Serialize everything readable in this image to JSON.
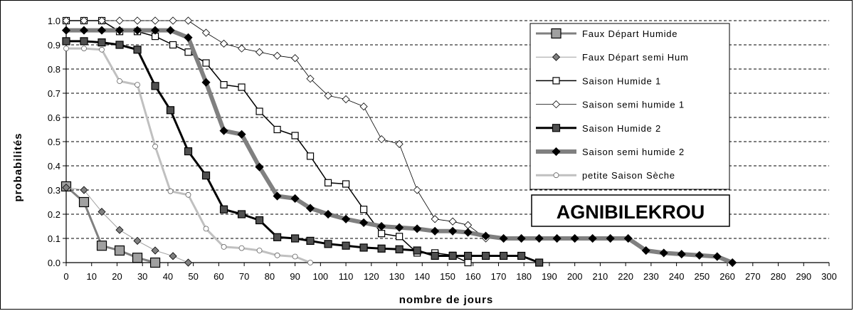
{
  "chart_data": {
    "type": "line",
    "station": "AGNIBILEKROU",
    "xlabel": "nombre de jours",
    "ylabel": "probabilités",
    "xlim": [
      0,
      300
    ],
    "ylim": [
      0,
      1.0
    ],
    "xticks": [
      0,
      10,
      20,
      30,
      40,
      50,
      60,
      70,
      80,
      90,
      100,
      110,
      120,
      130,
      140,
      150,
      160,
      170,
      180,
      190,
      200,
      210,
      220,
      230,
      240,
      250,
      260,
      270,
      280,
      290,
      300
    ],
    "yticks": [
      {
        "v": 0.0,
        "label": "0.0"
      },
      {
        "v": 0.1,
        "label": "0.1"
      },
      {
        "v": 0.2,
        "label": "0.2"
      },
      {
        "v": 0.3,
        "label": "0.3"
      },
      {
        "v": 0.4,
        "label": "0.4"
      },
      {
        "v": 0.5,
        "label": "0.5"
      },
      {
        "v": 0.6,
        "label": "0.6"
      },
      {
        "v": 0.7,
        "label": "0.7"
      },
      {
        "v": 0.8,
        "label": "0.8"
      },
      {
        "v": 0.9,
        "label": "0.9"
      },
      {
        "v": 1.0,
        "label": "1.0"
      }
    ],
    "grid": "horizontal dashed",
    "legend_position": "right",
    "series": [
      {
        "name": "Faux Départ Humide",
        "color": "#808080",
        "line_width": 3,
        "marker": "square",
        "marker_fill": "#a0a0a0",
        "marker_size": 13,
        "points": [
          [
            0,
            0.315
          ],
          [
            7,
            0.25
          ],
          [
            14,
            0.07
          ],
          [
            21,
            0.05
          ],
          [
            28,
            0.02
          ],
          [
            35,
            0.0
          ]
        ]
      },
      {
        "name": "Faux Départ semi Hum",
        "color": "#a0a0a0",
        "line_width": 1,
        "marker": "diamond",
        "marker_fill": "#808080",
        "marker_size": 10,
        "points": [
          [
            0,
            0.31
          ],
          [
            7,
            0.3
          ],
          [
            14,
            0.21
          ],
          [
            21,
            0.135
          ],
          [
            28,
            0.09
          ],
          [
            35,
            0.05
          ],
          [
            42,
            0.027
          ],
          [
            48,
            0.0
          ]
        ]
      },
      {
        "name": "Saison Humide 1",
        "color": "#000000",
        "line_width": 1.5,
        "marker": "square",
        "marker_fill": "#ffffff",
        "marker_size": 9,
        "points": [
          [
            0,
            1.0
          ],
          [
            7,
            1.0
          ],
          [
            14,
            1.0
          ],
          [
            21,
            0.955
          ],
          [
            28,
            0.955
          ],
          [
            35,
            0.935
          ],
          [
            42,
            0.9
          ],
          [
            48,
            0.87
          ],
          [
            55,
            0.825
          ],
          [
            62,
            0.735
          ],
          [
            69,
            0.725
          ],
          [
            76,
            0.625
          ],
          [
            83,
            0.55
          ],
          [
            90,
            0.525
          ],
          [
            96,
            0.44
          ],
          [
            103,
            0.33
          ],
          [
            110,
            0.325
          ],
          [
            117,
            0.22
          ],
          [
            124,
            0.12
          ],
          [
            131,
            0.108
          ],
          [
            138,
            0.04
          ],
          [
            145,
            0.04
          ],
          [
            152,
            0.03
          ],
          [
            158,
            0.0
          ]
        ]
      },
      {
        "name": "Saison semi humide 1",
        "color": "#000000",
        "line_width": 0.8,
        "marker": "diamond",
        "marker_fill": "#ffffff",
        "marker_size": 10,
        "points": [
          [
            0,
            1.0
          ],
          [
            7,
            1.0
          ],
          [
            14,
            1.0
          ],
          [
            21,
            1.0
          ],
          [
            28,
            1.0
          ],
          [
            35,
            1.0
          ],
          [
            42,
            1.0
          ],
          [
            48,
            1.0
          ],
          [
            55,
            0.95
          ],
          [
            62,
            0.905
          ],
          [
            69,
            0.885
          ],
          [
            76,
            0.87
          ],
          [
            83,
            0.855
          ],
          [
            90,
            0.845
          ],
          [
            96,
            0.76
          ],
          [
            103,
            0.69
          ],
          [
            110,
            0.675
          ],
          [
            117,
            0.645
          ],
          [
            124,
            0.51
          ],
          [
            131,
            0.49
          ],
          [
            138,
            0.3
          ],
          [
            145,
            0.18
          ],
          [
            152,
            0.17
          ],
          [
            158,
            0.155
          ],
          [
            165,
            0.1
          ]
        ]
      },
      {
        "name": "Saison Humide 2",
        "color": "#000000",
        "line_width": 3,
        "marker": "square",
        "marker_fill": "#505050",
        "marker_size": 10,
        "points": [
          [
            0,
            0.915
          ],
          [
            7,
            0.915
          ],
          [
            14,
            0.91
          ],
          [
            21,
            0.9
          ],
          [
            28,
            0.88
          ],
          [
            35,
            0.73
          ],
          [
            41,
            0.63
          ],
          [
            48,
            0.46
          ],
          [
            55,
            0.36
          ],
          [
            62,
            0.22
          ],
          [
            69,
            0.2
          ],
          [
            76,
            0.175
          ],
          [
            83,
            0.105
          ],
          [
            90,
            0.1
          ],
          [
            96,
            0.09
          ],
          [
            103,
            0.077
          ],
          [
            110,
            0.07
          ],
          [
            117,
            0.062
          ],
          [
            124,
            0.058
          ],
          [
            131,
            0.055
          ],
          [
            138,
            0.05
          ],
          [
            145,
            0.028
          ],
          [
            152,
            0.028
          ],
          [
            158,
            0.028
          ],
          [
            165,
            0.028
          ],
          [
            172,
            0.028
          ],
          [
            179,
            0.028
          ],
          [
            186,
            0.0
          ]
        ]
      },
      {
        "name": "Saison semi humide 2",
        "color": "#808080",
        "line_width": 6,
        "marker": "diamond",
        "marker_fill": "#000000",
        "marker_size": 11,
        "points": [
          [
            0,
            0.96
          ],
          [
            7,
            0.96
          ],
          [
            14,
            0.96
          ],
          [
            21,
            0.96
          ],
          [
            28,
            0.96
          ],
          [
            35,
            0.96
          ],
          [
            41,
            0.96
          ],
          [
            48,
            0.93
          ],
          [
            55,
            0.745
          ],
          [
            62,
            0.545
          ],
          [
            69,
            0.53
          ],
          [
            76,
            0.395
          ],
          [
            83,
            0.275
          ],
          [
            90,
            0.265
          ],
          [
            96,
            0.225
          ],
          [
            103,
            0.2
          ],
          [
            110,
            0.18
          ],
          [
            117,
            0.165
          ],
          [
            124,
            0.15
          ],
          [
            131,
            0.145
          ],
          [
            138,
            0.14
          ],
          [
            145,
            0.13
          ],
          [
            152,
            0.13
          ],
          [
            158,
            0.125
          ],
          [
            165,
            0.11
          ],
          [
            172,
            0.1
          ],
          [
            179,
            0.1
          ],
          [
            186,
            0.1
          ],
          [
            193,
            0.1
          ],
          [
            200,
            0.1
          ],
          [
            207,
            0.1
          ],
          [
            214,
            0.1
          ],
          [
            221,
            0.1
          ],
          [
            228,
            0.05
          ],
          [
            235,
            0.04
          ],
          [
            242,
            0.035
          ],
          [
            249,
            0.03
          ],
          [
            256,
            0.025
          ],
          [
            262,
            0.0
          ]
        ]
      },
      {
        "name": "petite Saison Sèche",
        "color": "#c0c0c0",
        "line_width": 3,
        "marker": "circle",
        "marker_fill": "#ffffff",
        "marker_size": 7,
        "points": [
          [
            0,
            0.885
          ],
          [
            7,
            0.885
          ],
          [
            14,
            0.88
          ],
          [
            21,
            0.75
          ],
          [
            28,
            0.735
          ],
          [
            35,
            0.48
          ],
          [
            41,
            0.295
          ],
          [
            48,
            0.28
          ],
          [
            55,
            0.14
          ],
          [
            62,
            0.065
          ],
          [
            69,
            0.06
          ],
          [
            76,
            0.05
          ],
          [
            83,
            0.03
          ],
          [
            90,
            0.025
          ],
          [
            96,
            0.0
          ]
        ]
      }
    ]
  }
}
